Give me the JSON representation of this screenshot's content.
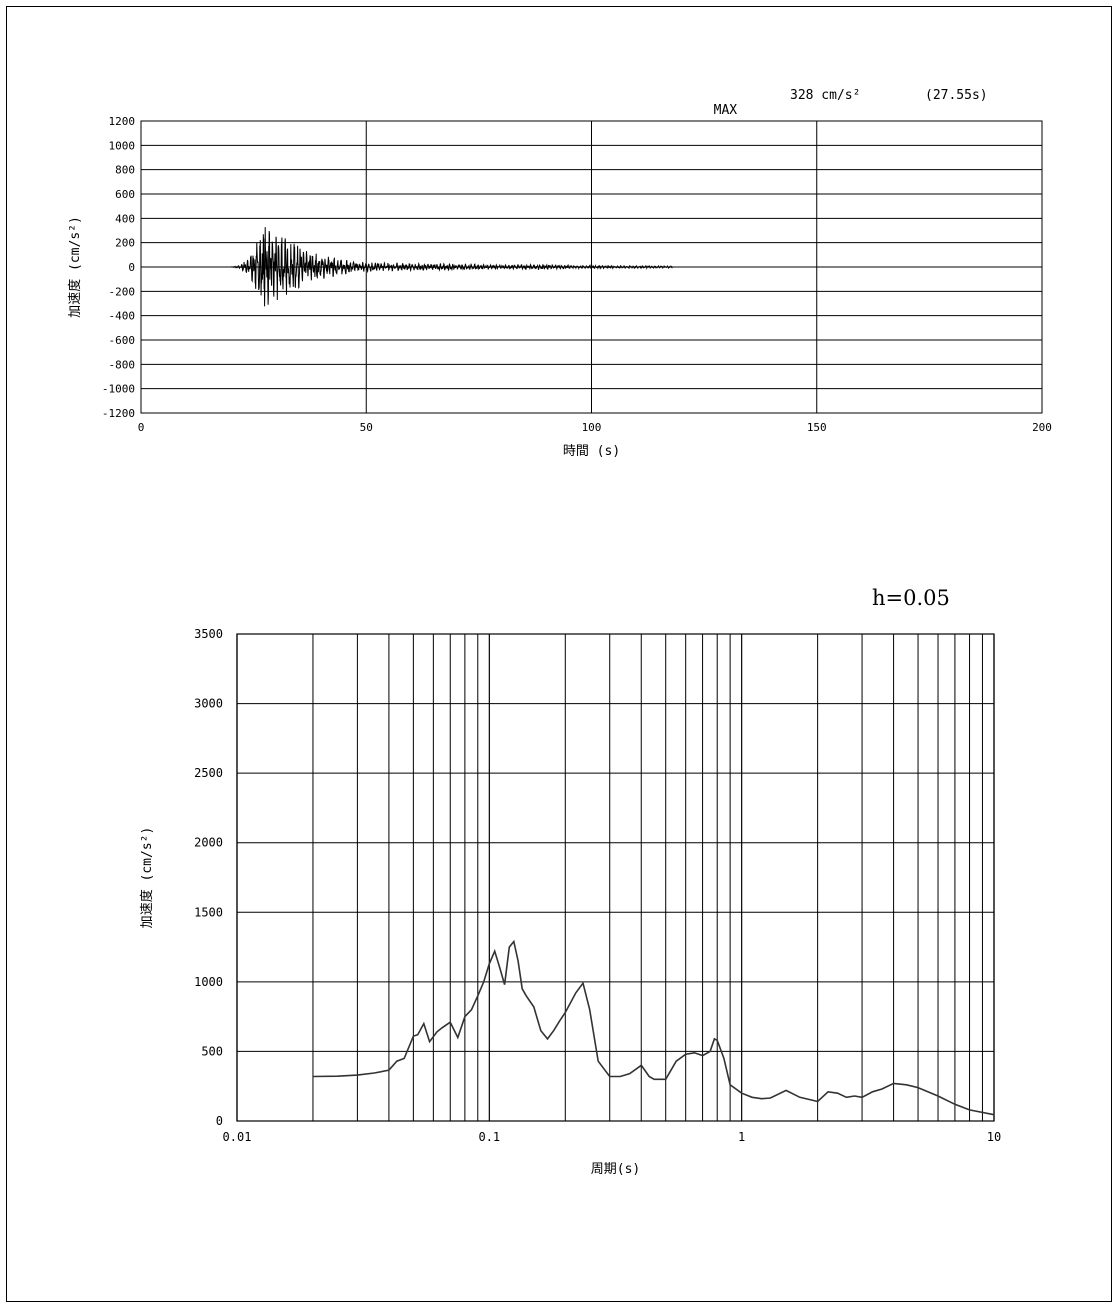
{
  "annotation": {
    "max_label": "MAX",
    "max_value": "328 cm/s²",
    "max_time": "(27.55s)"
  },
  "chart_data": [
    {
      "type": "line",
      "xlabel": "時間 (s)",
      "ylabel": "加速度 (cm/s²)",
      "xlim": [
        0,
        200
      ],
      "ylim": [
        -1200,
        1200
      ],
      "x_ticks": [
        "0",
        "50",
        "100",
        "150",
        "200"
      ],
      "y_ticks": [
        "1200",
        "1000",
        "800",
        "600",
        "400",
        "200",
        "0",
        "-200",
        "-400",
        "-600",
        "-800",
        "-1000",
        "-1200"
      ],
      "record": {
        "t_start": 20,
        "t_end": 118,
        "dt": 0.06,
        "peak_time": 27.55,
        "peak_value": 328
      },
      "envelope": {
        "t": [
          20,
          22,
          24,
          26,
          27.5,
          29,
          31,
          33,
          36,
          40,
          45,
          50,
          60,
          70,
          80,
          88,
          95,
          105,
          118
        ],
        "amp": [
          2,
          12,
          80,
          220,
          328,
          290,
          260,
          210,
          150,
          95,
          60,
          38,
          28,
          24,
          16,
          20,
          12,
          10,
          8
        ]
      },
      "grid": true
    },
    {
      "type": "line",
      "xscale": "log",
      "xlabel": "周期(s)",
      "ylabel": "加速度 (cm/s²)",
      "xlim": [
        0.01,
        10
      ],
      "ylim": [
        0,
        3500
      ],
      "x_ticks": [
        {
          "v": 0.01,
          "label": "0.01"
        },
        {
          "v": 0.1,
          "label": "0.1"
        },
        {
          "v": 1,
          "label": "1"
        },
        {
          "v": 10,
          "label": "10"
        }
      ],
      "y_ticks": [
        "3500",
        "3000",
        "2500",
        "2000",
        "1500",
        "1000",
        "500",
        "0"
      ],
      "annotation": "h=0.05",
      "grid": true,
      "x": [
        0.02,
        0.025,
        0.03,
        0.035,
        0.04,
        0.043,
        0.046,
        0.05,
        0.052,
        0.055,
        0.058,
        0.062,
        0.065,
        0.07,
        0.075,
        0.08,
        0.085,
        0.09,
        0.095,
        0.1,
        0.105,
        0.11,
        0.115,
        0.12,
        0.125,
        0.13,
        0.135,
        0.14,
        0.15,
        0.16,
        0.17,
        0.18,
        0.19,
        0.2,
        0.22,
        0.235,
        0.25,
        0.27,
        0.3,
        0.33,
        0.36,
        0.4,
        0.43,
        0.45,
        0.5,
        0.55,
        0.6,
        0.65,
        0.7,
        0.75,
        0.78,
        0.8,
        0.85,
        0.9,
        1.0,
        1.1,
        1.2,
        1.3,
        1.5,
        1.7,
        1.9,
        2.0,
        2.2,
        2.4,
        2.6,
        2.8,
        3.0,
        3.3,
        3.6,
        4.0,
        4.5,
        5.0,
        6.0,
        7.0,
        8.0,
        10.0
      ],
      "y": [
        320,
        322,
        330,
        345,
        365,
        430,
        450,
        610,
        620,
        700,
        570,
        640,
        670,
        710,
        600,
        750,
        800,
        900,
        1000,
        1130,
        1220,
        1100,
        980,
        1250,
        1290,
        1150,
        950,
        900,
        820,
        650,
        590,
        650,
        720,
        780,
        920,
        990,
        800,
        430,
        320,
        320,
        340,
        400,
        320,
        300,
        300,
        430,
        480,
        490,
        470,
        500,
        590,
        580,
        450,
        260,
        200,
        170,
        160,
        165,
        220,
        170,
        150,
        140,
        210,
        200,
        170,
        180,
        170,
        210,
        230,
        270,
        260,
        240,
        180,
        120,
        80,
        45
      ]
    }
  ]
}
